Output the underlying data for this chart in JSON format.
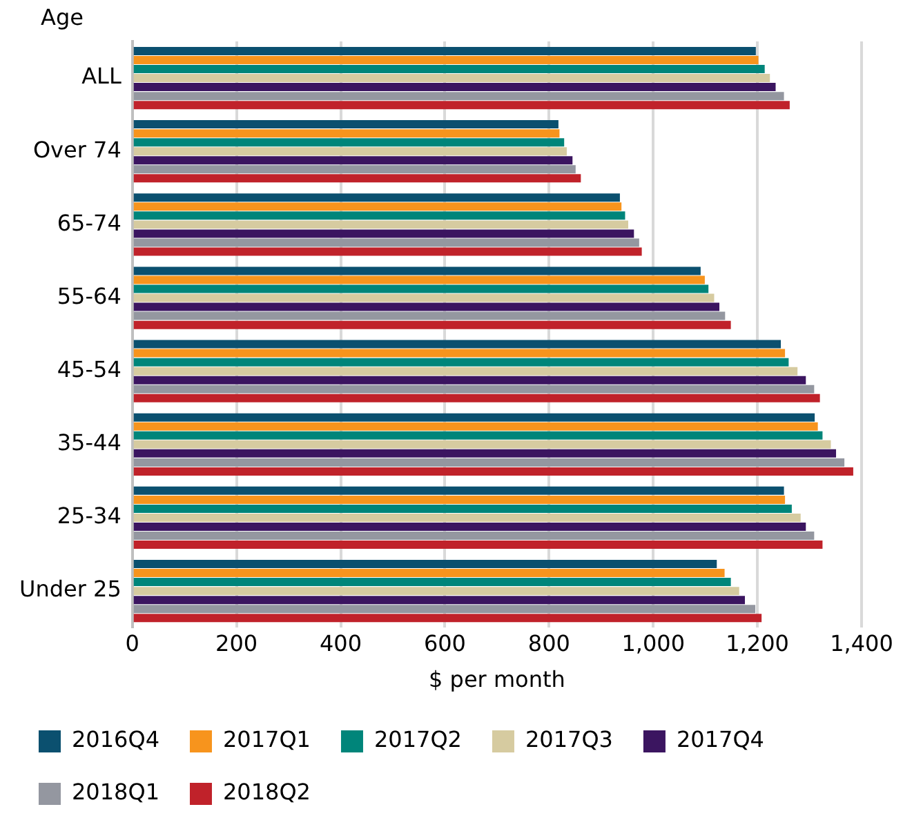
{
  "chart_data": {
    "type": "bar",
    "orientation": "horizontal",
    "ylabel": "Age",
    "xlabel": "$ per month",
    "categories": [
      "ALL",
      "Over 74",
      "65-74",
      "55-64",
      "45-54",
      "35-44",
      "25-34",
      "Under 25"
    ],
    "series": [
      {
        "name": "2016Q4",
        "color": "#0b506f",
        "values": [
          1197,
          818,
          936,
          1091,
          1245,
          1310,
          1251,
          1122
        ]
      },
      {
        "name": "2017Q1",
        "color": "#f7941d",
        "values": [
          1202,
          820,
          939,
          1099,
          1253,
          1316,
          1253,
          1137
        ]
      },
      {
        "name": "2017Q2",
        "color": "#00857a",
        "values": [
          1214,
          829,
          946,
          1106,
          1260,
          1325,
          1266,
          1149
        ]
      },
      {
        "name": "2017Q3",
        "color": "#d6cba0",
        "values": [
          1224,
          834,
          952,
          1117,
          1277,
          1341,
          1283,
          1165
        ]
      },
      {
        "name": "2017Q4",
        "color": "#3b1560",
        "values": [
          1235,
          845,
          963,
          1127,
          1293,
          1351,
          1293,
          1176
        ]
      },
      {
        "name": "2018Q1",
        "color": "#9497a0",
        "values": [
          1251,
          851,
          973,
          1138,
          1309,
          1367,
          1309,
          1196
        ]
      },
      {
        "name": "2018Q2",
        "color": "#c0222a",
        "values": [
          1262,
          861,
          978,
          1149,
          1320,
          1384,
          1325,
          1208
        ]
      }
    ],
    "xlim": [
      0,
      1400
    ],
    "xticks": [
      0,
      200,
      400,
      600,
      800,
      {
        "value": 1000,
        "label": "1,000"
      },
      {
        "value": 1200,
        "label": "1,200"
      },
      {
        "value": 1400,
        "label": "1,400"
      }
    ],
    "grid": "x",
    "legend": "bottom"
  }
}
